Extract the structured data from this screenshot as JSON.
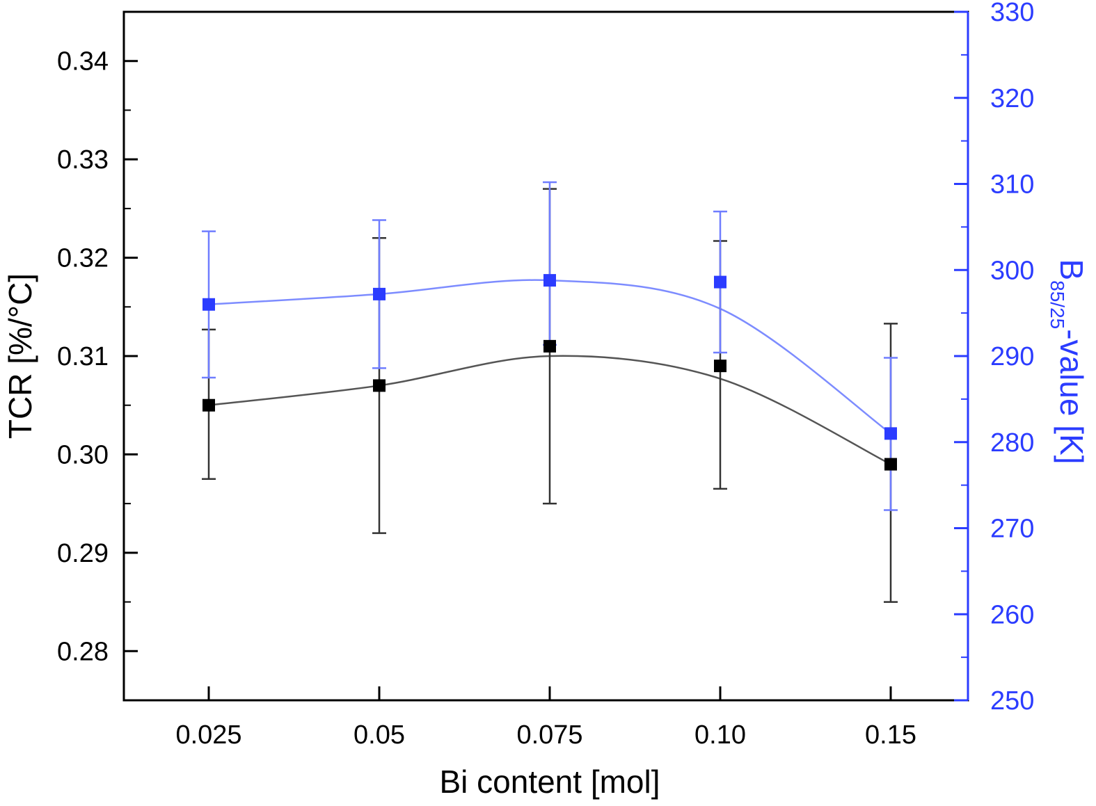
{
  "colors": {
    "left_series": "#000000",
    "right_series": "#2b3cff",
    "right_axis": "#2b3cff",
    "left_curve": "#555555",
    "right_curve": "#7d8cff",
    "right_errorbar": "#6f7dff",
    "left_errorbar": "#333333"
  },
  "chart_data": {
    "type": "scatter",
    "x_axis": {
      "label": "Bi content [mol]",
      "categories": [
        "0.025",
        "0.05",
        "0.075",
        "0.10",
        "0.15"
      ]
    },
    "y_left": {
      "label_main": "TCR [%/°C]",
      "ylim": [
        0.275,
        0.345
      ],
      "ticks": [
        "0.28",
        "0.29",
        "0.30",
        "0.31",
        "0.32",
        "0.33",
        "0.34"
      ]
    },
    "y_right": {
      "label_main": "B",
      "label_sub": "85/25",
      "label_rest": "-value [K]",
      "ylim": [
        250,
        330
      ],
      "ticks": [
        "250",
        "260",
        "270",
        "280",
        "290",
        "300",
        "310",
        "320",
        "330"
      ]
    },
    "series": [
      {
        "axis": "left",
        "marker": "square",
        "values": [
          0.305,
          0.307,
          0.311,
          0.309,
          0.299
        ],
        "error_upper": [
          0.3127,
          0.322,
          0.327,
          0.3217,
          0.3133
        ],
        "error_lower": [
          0.2975,
          0.292,
          0.295,
          0.2965,
          0.285
        ],
        "fit_curve": [
          0.305,
          0.307,
          0.31,
          0.3077,
          0.299
        ]
      },
      {
        "axis": "right",
        "marker": "square",
        "values": [
          296,
          297.2,
          298.8,
          298.6,
          281
        ],
        "error_upper": [
          304.5,
          305.8,
          310.2,
          306.8,
          289.8
        ],
        "error_lower": [
          287.5,
          288.6,
          291.3,
          290.4,
          272.1
        ],
        "fit_curve": [
          296,
          297.2,
          298.8,
          295.5,
          281
        ]
      }
    ],
    "grid": false,
    "legend": "none"
  }
}
